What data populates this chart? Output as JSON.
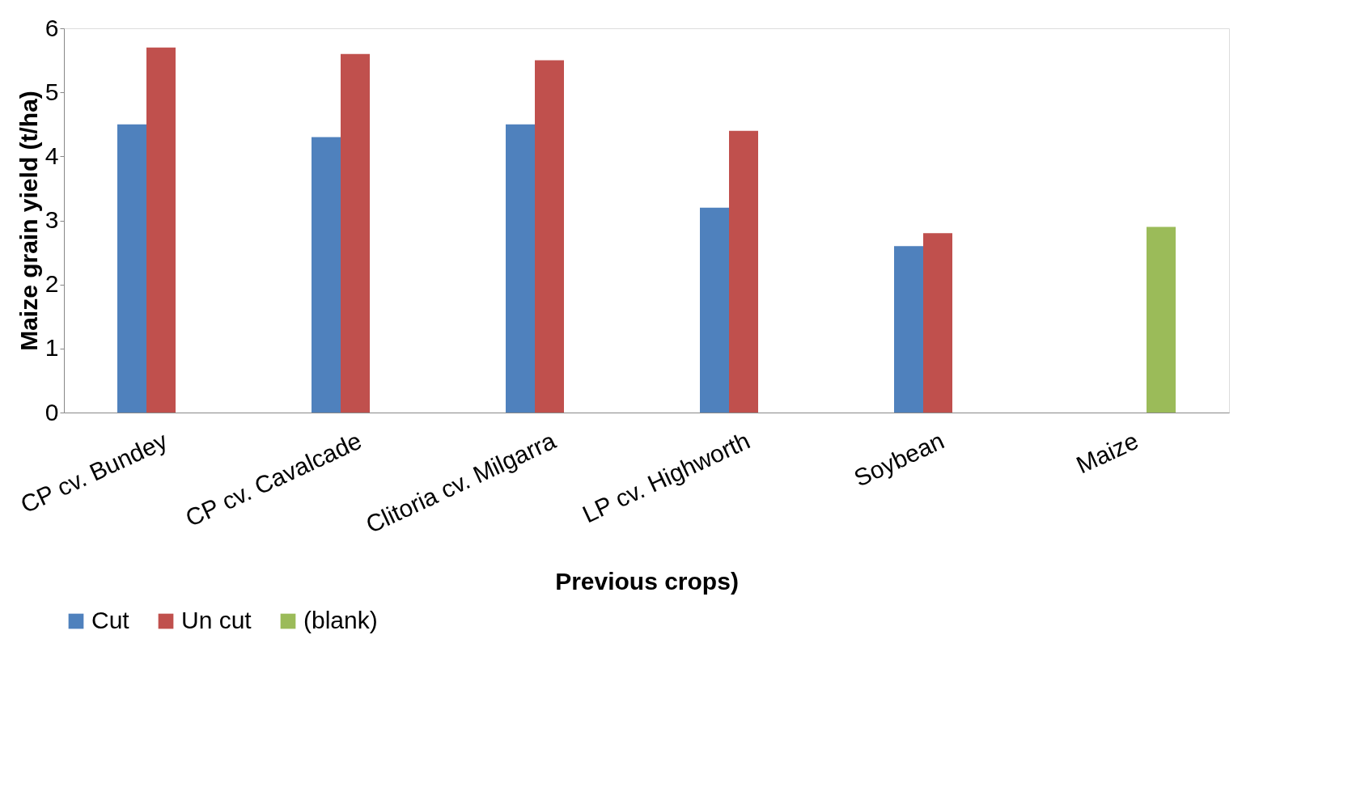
{
  "chart_data": {
    "type": "bar",
    "xlabel": "Previous crops)",
    "ylabel": "Maize grain yield (t/ha)",
    "categories": [
      "CP cv. Bundey",
      "CP cv. Cavalcade",
      "Clitoria cv. Milgarra",
      "LP cv. Highworth",
      "Soybean",
      "Maize"
    ],
    "series": [
      {
        "name": "Cut",
        "color": "#4f81bd",
        "values": [
          4.5,
          4.3,
          4.5,
          3.2,
          2.6,
          null
        ]
      },
      {
        "name": "Un cut",
        "color": "#c0504d",
        "values": [
          5.7,
          5.6,
          5.5,
          4.4,
          2.8,
          null
        ]
      },
      {
        "name": "(blank)",
        "color": "#9bbb59",
        "values": [
          null,
          null,
          null,
          null,
          null,
          2.9
        ]
      }
    ],
    "ylim": [
      0,
      6
    ],
    "yticks": [
      0,
      1,
      2,
      3,
      4,
      5,
      6
    ],
    "grid": false,
    "legend": "bottom"
  }
}
